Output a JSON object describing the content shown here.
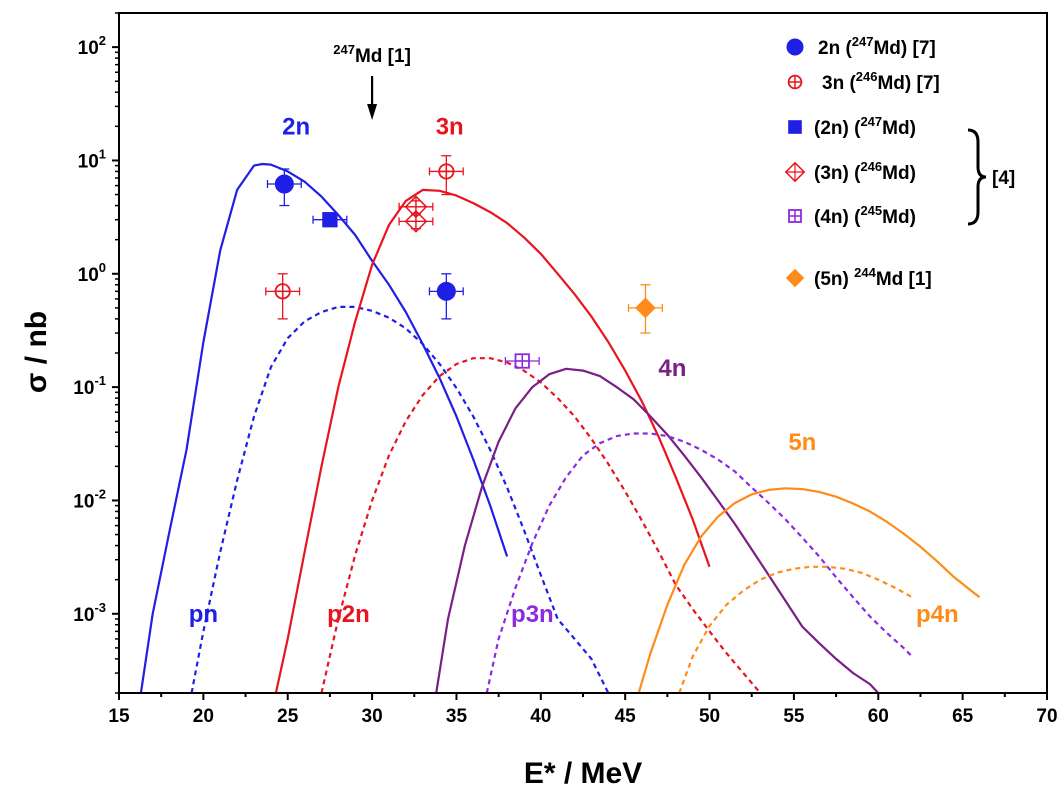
{
  "chart_data": {
    "type": "line",
    "title": "",
    "xlabel": "E* / MeV",
    "ylabel_symbol": "σ",
    "ylabel_unit": " / nb",
    "xlim": [
      15,
      70
    ],
    "ylim": [
      0.0002,
      200
    ],
    "y_scale": "log",
    "grid": false,
    "x_ticks": [
      15,
      20,
      25,
      30,
      35,
      40,
      45,
      50,
      55,
      60,
      65,
      70
    ],
    "y_ticks": [
      {
        "value": 0.001,
        "base": "10",
        "exp": "-3"
      },
      {
        "value": 0.01,
        "base": "10",
        "exp": "-2"
      },
      {
        "value": 0.1,
        "base": "10",
        "exp": "-1"
      },
      {
        "value": 1,
        "base": "10",
        "exp": "0"
      },
      {
        "value": 10,
        "base": "10",
        "exp": "1"
      },
      {
        "value": 100,
        "base": "10",
        "exp": "2"
      }
    ],
    "colors": {
      "blue": "#1f1fe6",
      "red": "#e8141e",
      "purple": "#7a1f86",
      "violet": "#8a2be2",
      "orange": "#ff8c1a"
    },
    "series": [
      {
        "label": "2n",
        "color": "#1f1fe6",
        "style": "solid",
        "label_at": [
          25.5,
          17
        ],
        "points": [
          [
            16.3,
            0.0002
          ],
          [
            17,
            0.001
          ],
          [
            18,
            0.0054
          ],
          [
            19,
            0.028
          ],
          [
            20,
            0.25
          ],
          [
            21,
            1.6
          ],
          [
            22,
            5.5
          ],
          [
            23,
            9.0
          ],
          [
            23.5,
            9.3
          ],
          [
            24,
            9.2
          ],
          [
            25,
            8.0
          ],
          [
            26,
            6.5
          ],
          [
            27,
            4.8
          ],
          [
            28,
            3.3
          ],
          [
            29,
            2.2
          ],
          [
            30,
            1.3
          ],
          [
            31,
            0.8
          ],
          [
            32,
            0.46
          ],
          [
            33,
            0.24
          ],
          [
            34,
            0.12
          ],
          [
            35,
            0.055
          ],
          [
            36,
            0.023
          ],
          [
            37,
            0.009
          ],
          [
            38,
            0.0032
          ]
        ]
      },
      {
        "label": "pn",
        "color": "#1f1fe6",
        "style": "dash",
        "label_at": [
          20,
          0.00085
        ],
        "points": [
          [
            19.3,
            0.0002
          ],
          [
            20,
            0.0007
          ],
          [
            21,
            0.0035
          ],
          [
            22,
            0.015
          ],
          [
            23,
            0.055
          ],
          [
            24,
            0.15
          ],
          [
            25,
            0.27
          ],
          [
            26,
            0.38
          ],
          [
            27,
            0.46
          ],
          [
            28,
            0.51
          ],
          [
            29,
            0.51
          ],
          [
            30,
            0.47
          ],
          [
            31,
            0.41
          ],
          [
            32,
            0.33
          ],
          [
            33,
            0.24
          ],
          [
            34,
            0.16
          ],
          [
            35,
            0.098
          ],
          [
            36,
            0.055
          ],
          [
            37,
            0.028
          ],
          [
            38,
            0.013
          ],
          [
            39,
            0.0055
          ],
          [
            40,
            0.0022
          ],
          [
            41,
            0.0009
          ],
          [
            42,
            0.0006
          ],
          [
            43,
            0.0004
          ],
          [
            44,
            0.0002
          ]
        ]
      },
      {
        "label": "3n",
        "color": "#e8141e",
        "style": "solid",
        "label_at": [
          34.6,
          17
        ],
        "points": [
          [
            24.3,
            0.0002
          ],
          [
            25,
            0.0006
          ],
          [
            26,
            0.0035
          ],
          [
            27,
            0.02
          ],
          [
            28,
            0.1
          ],
          [
            29,
            0.38
          ],
          [
            30,
            1.2
          ],
          [
            31,
            2.7
          ],
          [
            32,
            4.4
          ],
          [
            33,
            5.5
          ],
          [
            34,
            5.4
          ],
          [
            35,
            4.9
          ],
          [
            36,
            4.2
          ],
          [
            37,
            3.5
          ],
          [
            38,
            2.8
          ],
          [
            39,
            2.1
          ],
          [
            40,
            1.5
          ],
          [
            41,
            1.0
          ],
          [
            42,
            0.66
          ],
          [
            43,
            0.42
          ],
          [
            44,
            0.25
          ],
          [
            45,
            0.14
          ],
          [
            46,
            0.074
          ],
          [
            47,
            0.036
          ],
          [
            48,
            0.016
          ],
          [
            49,
            0.0068
          ],
          [
            50,
            0.0026
          ]
        ]
      },
      {
        "label": "p2n",
        "color": "#e8141e",
        "style": "dash",
        "label_at": [
          28.6,
          0.00085
        ],
        "points": [
          [
            27,
            0.0002
          ],
          [
            28,
            0.0009
          ],
          [
            29,
            0.0033
          ],
          [
            30,
            0.01
          ],
          [
            31,
            0.025
          ],
          [
            32,
            0.05
          ],
          [
            33,
            0.085
          ],
          [
            34,
            0.125
          ],
          [
            35,
            0.16
          ],
          [
            36,
            0.18
          ],
          [
            37,
            0.18
          ],
          [
            38,
            0.165
          ],
          [
            39,
            0.14
          ],
          [
            40,
            0.11
          ],
          [
            41,
            0.08
          ],
          [
            42,
            0.055
          ],
          [
            43,
            0.035
          ],
          [
            44,
            0.021
          ],
          [
            45,
            0.012
          ],
          [
            46,
            0.0066
          ],
          [
            47,
            0.0035
          ],
          [
            48,
            0.0018
          ],
          [
            49,
            0.0011
          ],
          [
            50,
            0.0007
          ],
          [
            51,
            0.00045
          ],
          [
            52,
            0.0003
          ],
          [
            53,
            0.0002
          ]
        ]
      },
      {
        "label": "4n",
        "color": "#7a1f86",
        "style": "solid",
        "label_at": [
          47.8,
          0.125
        ],
        "points": [
          [
            33.8,
            0.0002
          ],
          [
            34.5,
            0.0009
          ],
          [
            35.5,
            0.004
          ],
          [
            36.5,
            0.013
          ],
          [
            37.5,
            0.033
          ],
          [
            38.5,
            0.065
          ],
          [
            39.5,
            0.1
          ],
          [
            40.5,
            0.13
          ],
          [
            41.5,
            0.145
          ],
          [
            42.5,
            0.14
          ],
          [
            43.5,
            0.125
          ],
          [
            44.5,
            0.1
          ],
          [
            45.5,
            0.078
          ],
          [
            46.5,
            0.055
          ],
          [
            47.5,
            0.038
          ],
          [
            48.5,
            0.025
          ],
          [
            49.5,
            0.016
          ],
          [
            50.5,
            0.01
          ],
          [
            51.5,
            0.0062
          ],
          [
            52.5,
            0.0037
          ],
          [
            53.5,
            0.0022
          ],
          [
            54.5,
            0.0013
          ],
          [
            55.5,
            0.00077
          ],
          [
            56.5,
            0.00055
          ],
          [
            57.5,
            0.0004
          ],
          [
            58.5,
            0.0003
          ],
          [
            59.5,
            0.00024
          ],
          [
            60,
            0.0002
          ]
        ]
      },
      {
        "label": "p3n",
        "color": "#8a2be2",
        "style": "dash",
        "label_at": [
          39.5,
          0.00085
        ],
        "points": [
          [
            36.8,
            0.0002
          ],
          [
            37.5,
            0.0006
          ],
          [
            38.5,
            0.0017
          ],
          [
            39.5,
            0.0042
          ],
          [
            40.5,
            0.009
          ],
          [
            41.5,
            0.016
          ],
          [
            42.5,
            0.025
          ],
          [
            43.5,
            0.032
          ],
          [
            44.5,
            0.037
          ],
          [
            45.5,
            0.039
          ],
          [
            46.5,
            0.039
          ],
          [
            47.5,
            0.037
          ],
          [
            48.5,
            0.033
          ],
          [
            49.5,
            0.028
          ],
          [
            50.5,
            0.023
          ],
          [
            51.5,
            0.018
          ],
          [
            52.5,
            0.013
          ],
          [
            53.5,
            0.0095
          ],
          [
            54.5,
            0.0068
          ],
          [
            55.5,
            0.0047
          ],
          [
            56.5,
            0.0032
          ],
          [
            57.5,
            0.0021
          ],
          [
            58.5,
            0.0014
          ],
          [
            59.5,
            0.00095
          ],
          [
            60.5,
            0.00068
          ],
          [
            61.5,
            0.0005
          ],
          [
            62,
            0.00042
          ]
        ]
      },
      {
        "label": "5n",
        "color": "#ff8c1a",
        "style": "solid",
        "label_at": [
          55.5,
          0.028
        ],
        "points": [
          [
            45.8,
            0.0002
          ],
          [
            46.5,
            0.00045
          ],
          [
            47.5,
            0.0012
          ],
          [
            48.5,
            0.0027
          ],
          [
            49.5,
            0.0048
          ],
          [
            50.5,
            0.0072
          ],
          [
            51.5,
            0.0095
          ],
          [
            52.5,
            0.0113
          ],
          [
            53.5,
            0.0124
          ],
          [
            54.5,
            0.0128
          ],
          [
            55.5,
            0.0126
          ],
          [
            56.5,
            0.0119
          ],
          [
            57.5,
            0.0108
          ],
          [
            58.5,
            0.0094
          ],
          [
            59.5,
            0.008
          ],
          [
            60.5,
            0.0065
          ],
          [
            61.5,
            0.0051
          ],
          [
            62.5,
            0.0039
          ],
          [
            63.5,
            0.0029
          ],
          [
            64.5,
            0.0021
          ],
          [
            65.5,
            0.0016
          ],
          [
            66,
            0.0014
          ]
        ]
      },
      {
        "label": "p4n",
        "color": "#ff8c1a",
        "style": "dash",
        "label_at": [
          63.5,
          0.00085
        ],
        "points": [
          [
            48.2,
            0.0002
          ],
          [
            49,
            0.00042
          ],
          [
            50,
            0.00078
          ],
          [
            51,
            0.0012
          ],
          [
            52,
            0.0016
          ],
          [
            53,
            0.002
          ],
          [
            54,
            0.0023
          ],
          [
            55,
            0.0025
          ],
          [
            56,
            0.0026
          ],
          [
            57,
            0.0026
          ],
          [
            58,
            0.0025
          ],
          [
            59,
            0.0023
          ],
          [
            60,
            0.002
          ],
          [
            61,
            0.0017
          ],
          [
            62,
            0.0014
          ]
        ]
      }
    ],
    "experimental_points": [
      {
        "label": "2n (247Md) [7]",
        "marker": "circle",
        "color": "#1f1fe6",
        "x": 24.8,
        "y": 6.2,
        "xerr": 1.0,
        "yerr_low": 2.2,
        "yerr_high": 2.2
      },
      {
        "label": "2n (247Md) [7]",
        "marker": "circle",
        "color": "#1f1fe6",
        "x": 34.4,
        "y": 0.7,
        "xerr": 1.0,
        "yerr_low": 0.3,
        "yerr_high": 0.3
      },
      {
        "label": "3n (246Md) [7]",
        "marker": "circle-plus",
        "color": "#e8141e",
        "x": 24.7,
        "y": 0.7,
        "xerr": 1.0,
        "yerr_low": 0.3,
        "yerr_high": 0.3
      },
      {
        "label": "3n (246Md) [7]",
        "marker": "circle-plus",
        "color": "#e8141e",
        "x": 34.4,
        "y": 8.0,
        "xerr": 1.0,
        "yerr_low": 3.0,
        "yerr_high": 3.0
      },
      {
        "label": "(2n) (247Md) [4]",
        "marker": "square",
        "color": "#1f1fe6",
        "x": 27.5,
        "y": 3.0,
        "xerr": 1.0,
        "yerr_low": 0,
        "yerr_high": 0
      },
      {
        "label": "(3n) (246Md) [4]",
        "marker": "diamond-plus",
        "color": "#e8141e",
        "x": 32.6,
        "y": 3.9,
        "xerr": 1.0,
        "yerr_low": 0.5,
        "yerr_high": 0.5
      },
      {
        "label": "(3n) (246Md) [4]",
        "marker": "diamond-plus",
        "color": "#e8141e",
        "x": 32.6,
        "y": 2.9,
        "xerr": 1.0,
        "yerr_low": 0.4,
        "yerr_high": 0.4
      },
      {
        "label": "(4n) (245Md) [4]",
        "marker": "square-plus",
        "color": "#8a2be2",
        "x": 38.9,
        "y": 0.17,
        "xerr": 1.0,
        "yerr_low": 0,
        "yerr_high": 0
      },
      {
        "label": "(5n) 244Md [1]",
        "marker": "diamond",
        "color": "#ff8c1a",
        "x": 46.2,
        "y": 0.5,
        "xerr": 1.0,
        "yerr_low": 0.2,
        "yerr_high": 0.3
      }
    ],
    "arrow_annotation": {
      "sup": "247",
      "text": "Md [1]",
      "x": 30.0,
      "y_top": 50,
      "y_tip": 10
    },
    "legend": {
      "placement": "top-right",
      "items": [
        {
          "marker": "circle",
          "color": "#1f1fe6",
          "pre": "2n (",
          "sup": "247",
          "post": "Md)  [7]"
        },
        {
          "marker": "circle-plus",
          "color": "#e8141e",
          "pre": "3n (",
          "sup": "246",
          "post": "Md) [7]"
        },
        {
          "marker": "square",
          "color": "#1f1fe6",
          "pre": "(2n) (",
          "sup": "247",
          "post": "Md)"
        },
        {
          "marker": "diamond-plus",
          "color": "#e8141e",
          "pre": "(3n) (",
          "sup": "246",
          "post": "Md)"
        },
        {
          "marker": "square-plus",
          "color": "#8a2be2",
          "pre": "(4n) (",
          "sup": "245",
          "post": "Md)"
        },
        {
          "marker": "diamond",
          "color": "#ff8c1a",
          "pre": "(5n) ",
          "sup": "244",
          "post": "Md [1]"
        }
      ],
      "bracket_label": "[4]"
    }
  }
}
